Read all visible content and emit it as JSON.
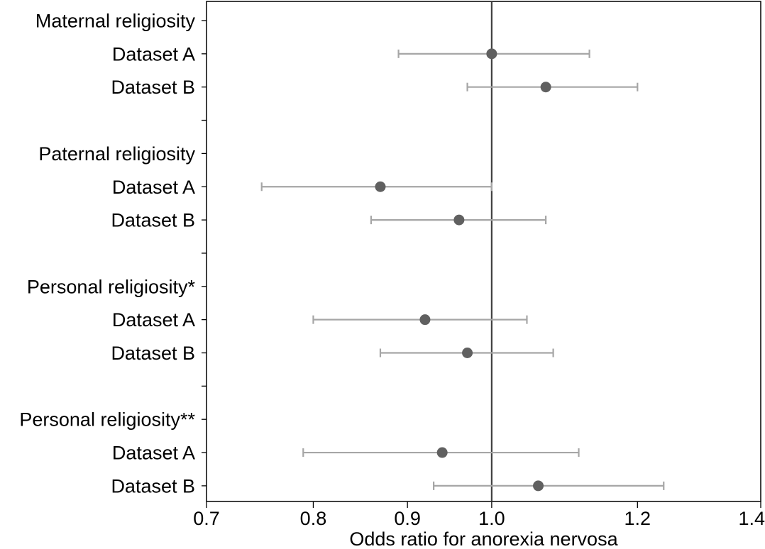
{
  "chart_data": {
    "type": "forest",
    "xlabel": "Odds ratio for anorexia nervosa",
    "x_scale": "log",
    "xlim": [
      0.7,
      1.4
    ],
    "xticks": [
      {
        "value": 0.7,
        "label": "0.7"
      },
      {
        "value": 0.8,
        "label": "0.8"
      },
      {
        "value": 0.9,
        "label": "0.9"
      },
      {
        "value": 1.0,
        "label": "1.0"
      },
      {
        "value": 1.2,
        "label": "1.2"
      },
      {
        "value": 1.4,
        "label": "1.4"
      }
    ],
    "reference_line": 1.0,
    "rows": [
      {
        "label": "Maternal religiosity",
        "header": true
      },
      {
        "label": "Dataset A",
        "or": 1.0,
        "lo": 0.89,
        "hi": 1.13
      },
      {
        "label": "Dataset B",
        "or": 1.07,
        "lo": 0.97,
        "hi": 1.2
      },
      {
        "label": "",
        "spacer": true
      },
      {
        "label": "Paternal religiosity",
        "header": true
      },
      {
        "label": "Dataset A",
        "or": 0.87,
        "lo": 0.75,
        "hi": 1.0
      },
      {
        "label": "Dataset B",
        "or": 0.96,
        "lo": 0.86,
        "hi": 1.07
      },
      {
        "label": "",
        "spacer": true
      },
      {
        "label": "Personal religiosity*",
        "header": true
      },
      {
        "label": "Dataset A",
        "or": 0.92,
        "lo": 0.8,
        "hi": 1.045
      },
      {
        "label": "Dataset B",
        "or": 0.97,
        "lo": 0.87,
        "hi": 1.08
      },
      {
        "label": "",
        "spacer": true
      },
      {
        "label": "Personal religiosity**",
        "header": true
      },
      {
        "label": "Dataset A",
        "or": 0.94,
        "lo": 0.79,
        "hi": 1.115
      },
      {
        "label": "Dataset B",
        "or": 1.06,
        "lo": 0.93,
        "hi": 1.24
      }
    ],
    "colors": {
      "point": "#606060",
      "ci": "#a6a6a6",
      "reference": "#404040",
      "axis": "#000000"
    }
  }
}
